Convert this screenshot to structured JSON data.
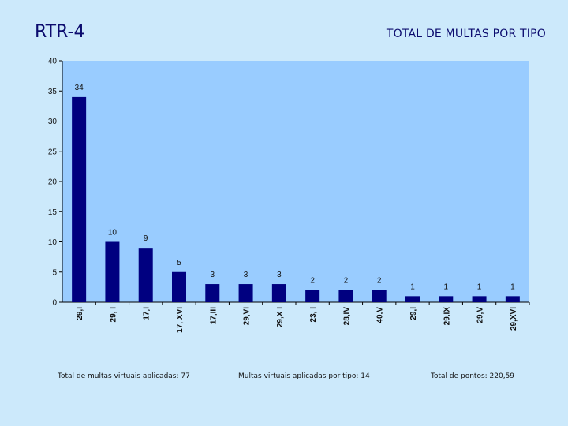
{
  "page": {
    "slide_title": "RTR-4",
    "chart_title": "TOTAL DE MULTAS POR TIPO"
  },
  "footer": {
    "total_label": "Total de multas virtuais aplicadas: 77",
    "tipo_label": "Multas virtuais aplicadas por tipo: 14",
    "pontos_label": "Total de pontos: 220,59"
  },
  "colors": {
    "page_background": "#cce9fb",
    "plot_background": "#99ccff",
    "bar": "#000080",
    "title_text": "#0b0b6e"
  },
  "chart_data": {
    "type": "bar",
    "title": "TOTAL DE MULTAS POR TIPO",
    "categories": [
      "29,I",
      "29, I",
      "17,I",
      "17, XVI",
      "17,III",
      "29,VI",
      "29,X I",
      "23, I",
      "28,IV",
      "40,V",
      "29,I",
      "29,IX",
      "29,V",
      "29,XVI"
    ],
    "values": [
      34,
      10,
      9,
      5,
      3,
      3,
      3,
      2,
      2,
      2,
      1,
      1,
      1,
      1
    ],
    "xlabel": "",
    "ylabel": "",
    "ylim": [
      0,
      40
    ],
    "yticks": [
      0,
      5,
      10,
      15,
      20,
      25,
      30,
      35,
      40
    ],
    "grid": false,
    "legend": "none"
  }
}
